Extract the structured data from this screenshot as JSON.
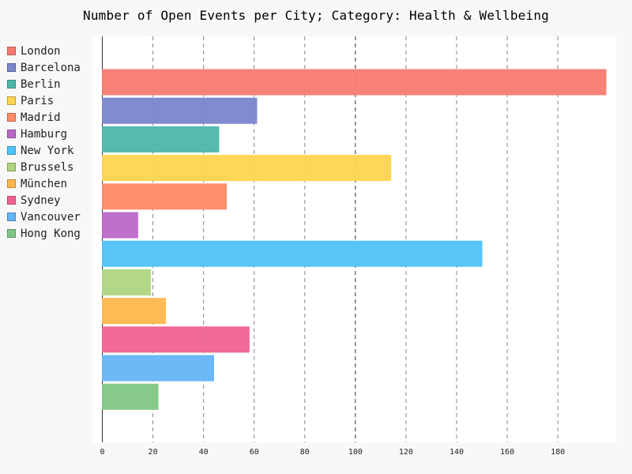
{
  "chart_data": {
    "type": "bar",
    "orientation": "horizontal",
    "title": "Number of Open Events per City; Category: Health & Wellbeing",
    "xlabel": "",
    "ylabel": "",
    "xlim": [
      0,
      199
    ],
    "x_ticks": [
      0,
      20,
      40,
      60,
      80,
      100,
      120,
      140,
      160,
      180
    ],
    "grid": "vertical dashed",
    "legend_position": "left",
    "categories": [
      "London",
      "Barcelona",
      "Berlin",
      "Paris",
      "Madrid",
      "Hamburg",
      "New York",
      "Brussels",
      "München",
      "Sydney",
      "Vancouver",
      "Hong Kong"
    ],
    "values": [
      199,
      61,
      46,
      114,
      49,
      14,
      150,
      19,
      25,
      58,
      44,
      22
    ],
    "colors": [
      "#f87b70",
      "#7986cc",
      "#4db6ac",
      "#ffd54f",
      "#ff8a65",
      "#ba68c8",
      "#4fc3f7",
      "#aed581",
      "#ffb74d",
      "#f06292",
      "#64b5f6",
      "#81c784"
    ]
  }
}
